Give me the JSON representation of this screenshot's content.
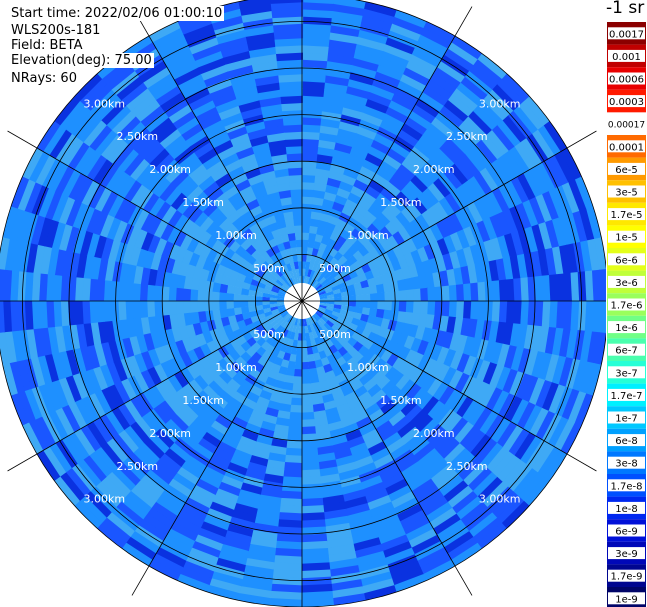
{
  "info": {
    "start_time": "Start time: 2022/02/06 01:00:10",
    "instrument": "WLS200s-181",
    "field": "Field: BETA",
    "elevation": "Elevation(deg): 75.00",
    "nrays": "NRays: 60"
  },
  "chart_data": {
    "type": "heatmap",
    "projection": "polar-ppi",
    "field": "BETA",
    "elevation_deg": 75.0,
    "nrays": 60,
    "range_rings_labels": [
      "500m",
      "1.00km",
      "1.50km",
      "2.00km",
      "2.50km",
      "3.00km"
    ],
    "range_rings_km": [
      0.5,
      1.0,
      1.5,
      2.0,
      2.5,
      3.0
    ],
    "max_range_km": 3.3,
    "colorbar": {
      "title": "-1 sr",
      "labels": [
        "0.0017",
        "0.001",
        "0.0006",
        "0.0003",
        "0.00017",
        "0.0001",
        "6e-5",
        "3e-5",
        "1.7e-5",
        "1e-5",
        "6e-6",
        "3e-6",
        "1.7e-6",
        "1e-6",
        "6e-7",
        "3e-7",
        "1.7e-7",
        "1e-7",
        "6e-8",
        "3e-8",
        "1.7e-8",
        "1e-8",
        "6e-9",
        "3e-9",
        "1.7e-9",
        "1e-9"
      ],
      "colors": [
        "#8b0000",
        "#c00000",
        "#e80000",
        "#ff1a00",
        "#ffffff",
        "#ff6a00",
        "#ff9a00",
        "#ffc000",
        "#ffe800",
        "#ffff00",
        "#e4ff1a",
        "#c0ff3a",
        "#9aff5c",
        "#70ff86",
        "#4affae",
        "#26ffd6",
        "#00f0ff",
        "#00c8ff",
        "#00a0ff",
        "#0078ff",
        "#0050ff",
        "#0028f0",
        "#0010d8",
        "#0008b8",
        "#000690",
        "#000468"
      ]
    },
    "colors": {
      "light": "#1e90ff",
      "mid": "#1a56ff",
      "deep": "#0a32e0",
      "pale": "#3fa9f5"
    }
  }
}
